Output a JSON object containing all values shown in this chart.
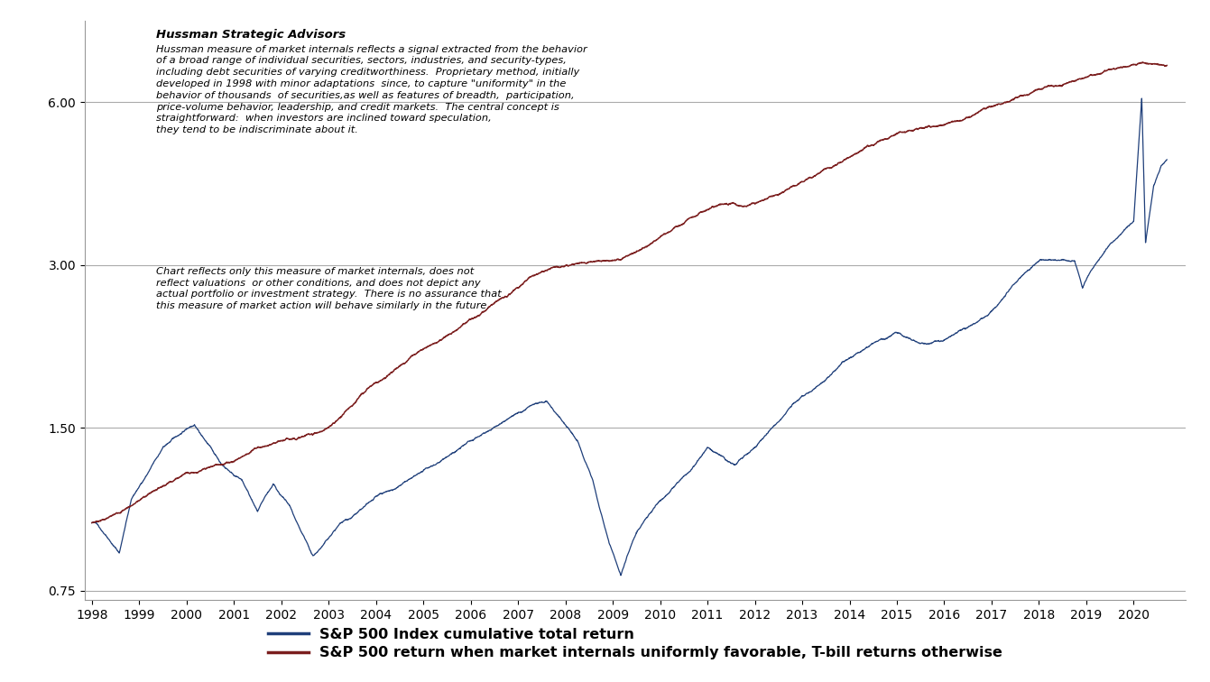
{
  "title_company": "Hussman Strategic Advisors",
  "annotation1": "Hussman measure of market internals reflects a signal extracted from the behavior\nof a broad range of individual securities, sectors, industries, and security-types,\nincluding debt securities of varying creditworthiness.  Proprietary method, initially\ndeveloped in 1998 with minor adaptations  since, to capture \"uniformity\" in the\nbehavior of thousands  of securities,as well as features of breadth,  participation,\nprice-volume behavior, leadership, and credit markets.  The central concept is\nstraightforward:  when investors are inclined toward speculation,\nthey tend to be indiscriminate about it.",
  "annotation2": "Chart reflects only this measure of market internals, does not\nreflect valuations  or other conditions, and does not depict any\nactual portfolio or investment strategy.  There is no assurance that\nthis measure of market action will behave similarly in the future.",
  "yticks": [
    0.75,
    1.5,
    3.0,
    6.0
  ],
  "ytick_labels": [
    "0.75",
    "1.50",
    "3.00",
    "6.00"
  ],
  "xlim_start": 1997.85,
  "xlim_end": 2021.1,
  "ylim_bottom": 0.72,
  "ylim_top": 8.5,
  "line1_color": "#1f3f7a",
  "line2_color": "#7b1e1e",
  "line1_label": "S&P 500 Index cumulative total return",
  "line2_label": "S&P 500 return when market internals uniformly favorable, T-bill returns otherwise",
  "background_color": "#ffffff",
  "grid_color": "#aaaaaa",
  "text_color": "#000000",
  "font_size_annotation": 8.2,
  "font_size_title": 9.5,
  "font_size_tick": 10,
  "font_size_legend": 11.5
}
